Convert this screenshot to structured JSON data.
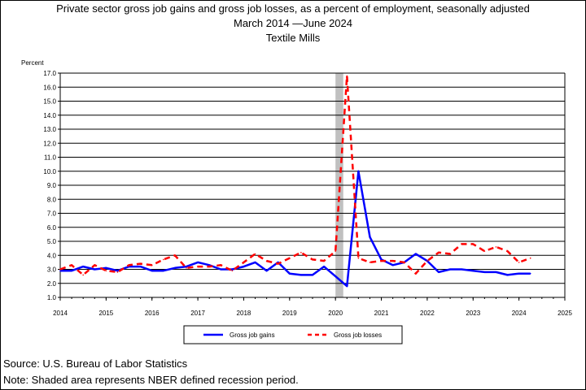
{
  "chart_data": {
    "type": "line",
    "title": "Private sector gross job gains and gross job losses, as a percent of employment, seasonally adjusted",
    "subtitle": "March 2014 —June 2024",
    "subtitle2": "Textile Mills",
    "ylabel": "Percent",
    "ylim": [
      1.0,
      17.0
    ],
    "xlim": [
      2014,
      2025
    ],
    "y_ticks": [
      "1.0",
      "2.0",
      "3.0",
      "4.0",
      "5.0",
      "6.0",
      "7.0",
      "8.0",
      "9.0",
      "10.0",
      "11.0",
      "12.0",
      "13.0",
      "14.0",
      "15.0",
      "16.0",
      "17.0"
    ],
    "x_ticks": [
      "2014",
      "2015",
      "2016",
      "2017",
      "2018",
      "2019",
      "2020",
      "2021",
      "2022",
      "2023",
      "2024",
      "2025"
    ],
    "grid": "horizontal",
    "legend_position": "bottom",
    "recession": {
      "start": 2020.0,
      "end": 2020.17
    },
    "series": [
      {
        "name": "Gross job gains",
        "style": "solid",
        "color": "#0000ff",
        "x": [
          2014.0,
          2014.25,
          2014.5,
          2014.75,
          2015.0,
          2015.25,
          2015.5,
          2015.75,
          2016.0,
          2016.25,
          2016.5,
          2016.75,
          2017.0,
          2017.25,
          2017.5,
          2017.75,
          2018.0,
          2018.25,
          2018.5,
          2018.75,
          2019.0,
          2019.25,
          2019.5,
          2019.75,
          2020.0,
          2020.25,
          2020.5,
          2020.75,
          2021.0,
          2021.25,
          2021.5,
          2021.75,
          2022.0,
          2022.25,
          2022.5,
          2022.75,
          2023.0,
          2023.25,
          2023.5,
          2023.75,
          2024.0,
          2024.25
        ],
        "values": [
          2.9,
          2.9,
          3.2,
          3.0,
          3.1,
          2.9,
          3.2,
          3.2,
          2.9,
          2.9,
          3.1,
          3.2,
          3.5,
          3.3,
          3.0,
          3.0,
          3.2,
          3.5,
          2.9,
          3.5,
          2.7,
          2.6,
          2.6,
          3.2,
          2.5,
          1.8,
          10.0,
          5.3,
          3.7,
          3.3,
          3.5,
          4.1,
          3.6,
          2.8,
          3.0,
          3.0,
          2.9,
          2.8,
          2.8,
          2.6,
          2.7,
          2.7
        ]
      },
      {
        "name": "Gross job losses",
        "style": "dashed",
        "color": "#ff0000",
        "x": [
          2014.0,
          2014.25,
          2014.5,
          2014.75,
          2015.0,
          2015.25,
          2015.5,
          2015.75,
          2016.0,
          2016.25,
          2016.5,
          2016.75,
          2017.0,
          2017.25,
          2017.5,
          2017.75,
          2018.0,
          2018.25,
          2018.5,
          2018.75,
          2019.0,
          2019.25,
          2019.5,
          2019.75,
          2020.0,
          2020.25,
          2020.5,
          2020.75,
          2021.0,
          2021.25,
          2021.5,
          2021.75,
          2022.0,
          2022.25,
          2022.5,
          2022.75,
          2023.0,
          2023.25,
          2023.5,
          2023.75,
          2024.0,
          2024.25
        ],
        "values": [
          3.0,
          3.3,
          2.6,
          3.3,
          2.9,
          2.8,
          3.3,
          3.4,
          3.3,
          3.7,
          4.0,
          3.1,
          3.2,
          3.2,
          3.3,
          2.9,
          3.5,
          4.1,
          3.6,
          3.4,
          3.8,
          4.2,
          3.7,
          3.6,
          4.3,
          16.8,
          3.8,
          3.5,
          3.6,
          3.6,
          3.5,
          2.7,
          3.6,
          4.2,
          4.1,
          4.8,
          4.8,
          4.3,
          4.6,
          4.3,
          3.5,
          3.8
        ]
      }
    ]
  },
  "footer": {
    "source": "Source: U.S. Bureau of Labor Statistics",
    "note": "Note: Shaded area represents NBER defined recession period."
  }
}
